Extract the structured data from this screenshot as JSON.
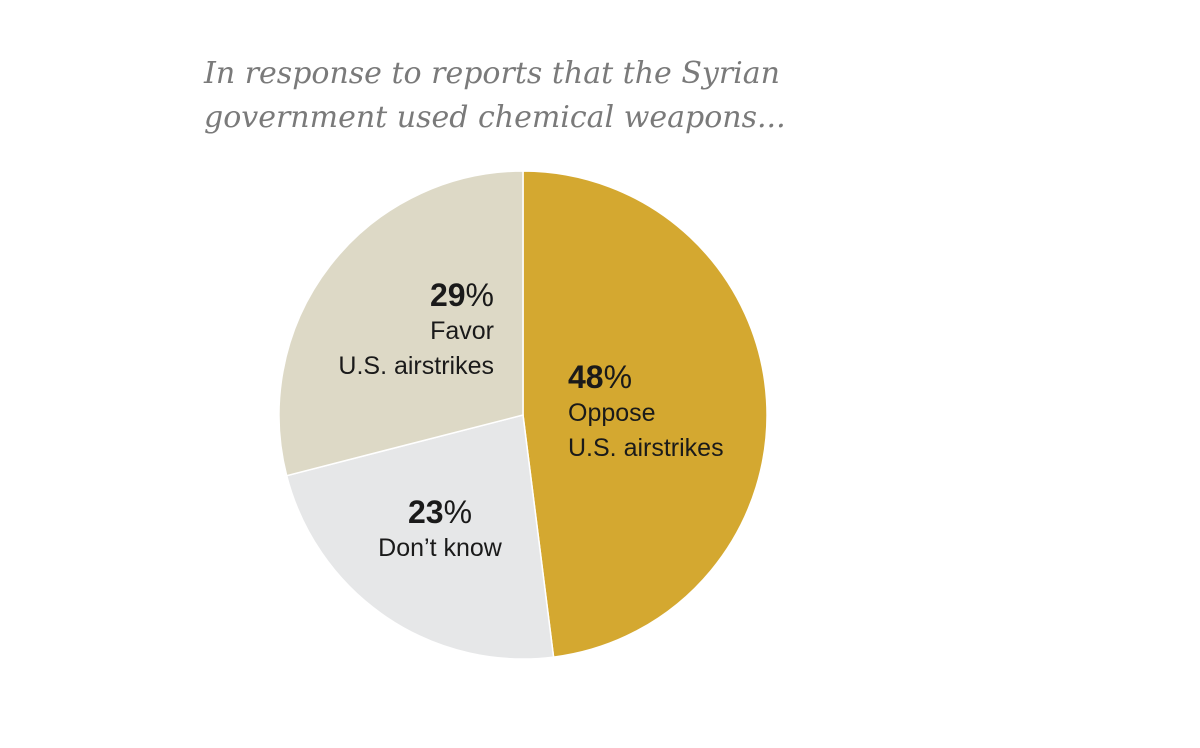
{
  "chart_data": {
    "type": "pie",
    "title_lines": [
      "In response to reports that the Syrian",
      "government used chemical weapons..."
    ],
    "slices": [
      {
        "name": "Oppose U.S. airstrikes",
        "label_lines": [
          "Oppose",
          "U.S. airstrikes"
        ],
        "value": 48,
        "value_label": "48",
        "color": "#D4A830"
      },
      {
        "name": "Don't know",
        "label_lines": [
          "Don’t know"
        ],
        "value": 23,
        "value_label": "23",
        "color": "#E6E7E8"
      },
      {
        "name": "Favor U.S. airstrikes",
        "label_lines": [
          "Favor",
          "U.S. airstrikes"
        ],
        "value": 29,
        "value_label": "29",
        "color": "#DDD9C6"
      }
    ],
    "value_suffix": "%",
    "start": "12 o'clock",
    "direction": "clockwise"
  }
}
